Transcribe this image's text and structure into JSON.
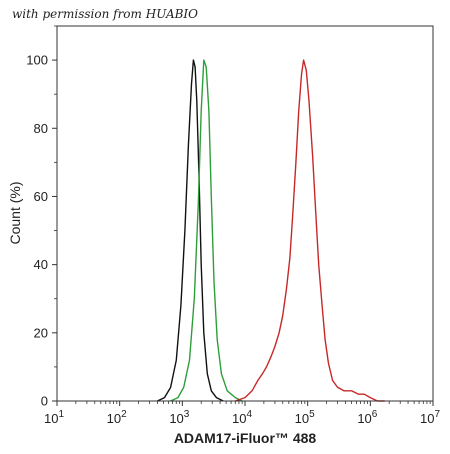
{
  "watermark": "with permission from HUABIO",
  "chart_data": {
    "type": "line",
    "title": "",
    "xlabel": "ADAM17-iFluor™ 488",
    "ylabel": "Count  (%)",
    "xscale": "log",
    "xlim": [
      10,
      10000000
    ],
    "ylim": [
      0,
      110
    ],
    "xticks": [
      10,
      100,
      1000,
      10000,
      100000,
      1000000,
      10000000
    ],
    "xtick_labels": [
      [
        "10",
        "1"
      ],
      [
        "10",
        "2"
      ],
      [
        "10",
        "3"
      ],
      [
        "10",
        "4"
      ],
      [
        "10",
        "5"
      ],
      [
        "10",
        "6"
      ],
      [
        "10",
        "7"
      ]
    ],
    "yticks": [
      0,
      20,
      40,
      60,
      80,
      100
    ],
    "ytick_labels": [
      "0",
      "20",
      "40",
      "60",
      "80",
      "100"
    ],
    "grid": false,
    "series": [
      {
        "color": "#111111",
        "x": [
          400,
          520,
          650,
          800,
          950,
          1100,
          1250,
          1400,
          1500,
          1600,
          1700,
          1850,
          2000,
          2200,
          2500,
          2900,
          3500,
          4500
        ],
        "y": [
          0,
          1,
          4,
          12,
          28,
          50,
          75,
          93,
          100,
          98,
          88,
          65,
          40,
          20,
          8,
          3,
          1,
          0
        ]
      },
      {
        "color": "#2e9e3a",
        "x": [
          650,
          850,
          1050,
          1300,
          1550,
          1800,
          2000,
          2200,
          2400,
          2650,
          2900,
          3200,
          3600,
          4200,
          5200,
          7000,
          9000
        ],
        "y": [
          0,
          1,
          4,
          12,
          30,
          58,
          85,
          100,
          98,
          85,
          60,
          35,
          18,
          8,
          3,
          1,
          0
        ]
      },
      {
        "color": "#c62828",
        "x": [
          7000,
          10000,
          13000,
          16000,
          19000,
          22000,
          26000,
          30000,
          35000,
          40000,
          46000,
          52000,
          58000,
          65000,
          72000,
          80000,
          86000,
          95000,
          105000,
          120000,
          135000,
          150000,
          170000,
          190000,
          215000,
          250000,
          300000,
          380000,
          500000,
          650000,
          800000,
          1000000,
          1300000,
          1700000
        ],
        "y": [
          0,
          1,
          3,
          6,
          8,
          10,
          13,
          16,
          20,
          25,
          33,
          42,
          55,
          70,
          85,
          96,
          100,
          97,
          88,
          72,
          55,
          40,
          28,
          18,
          11,
          6,
          4,
          3,
          3,
          2,
          2,
          1,
          0,
          0
        ]
      }
    ]
  }
}
